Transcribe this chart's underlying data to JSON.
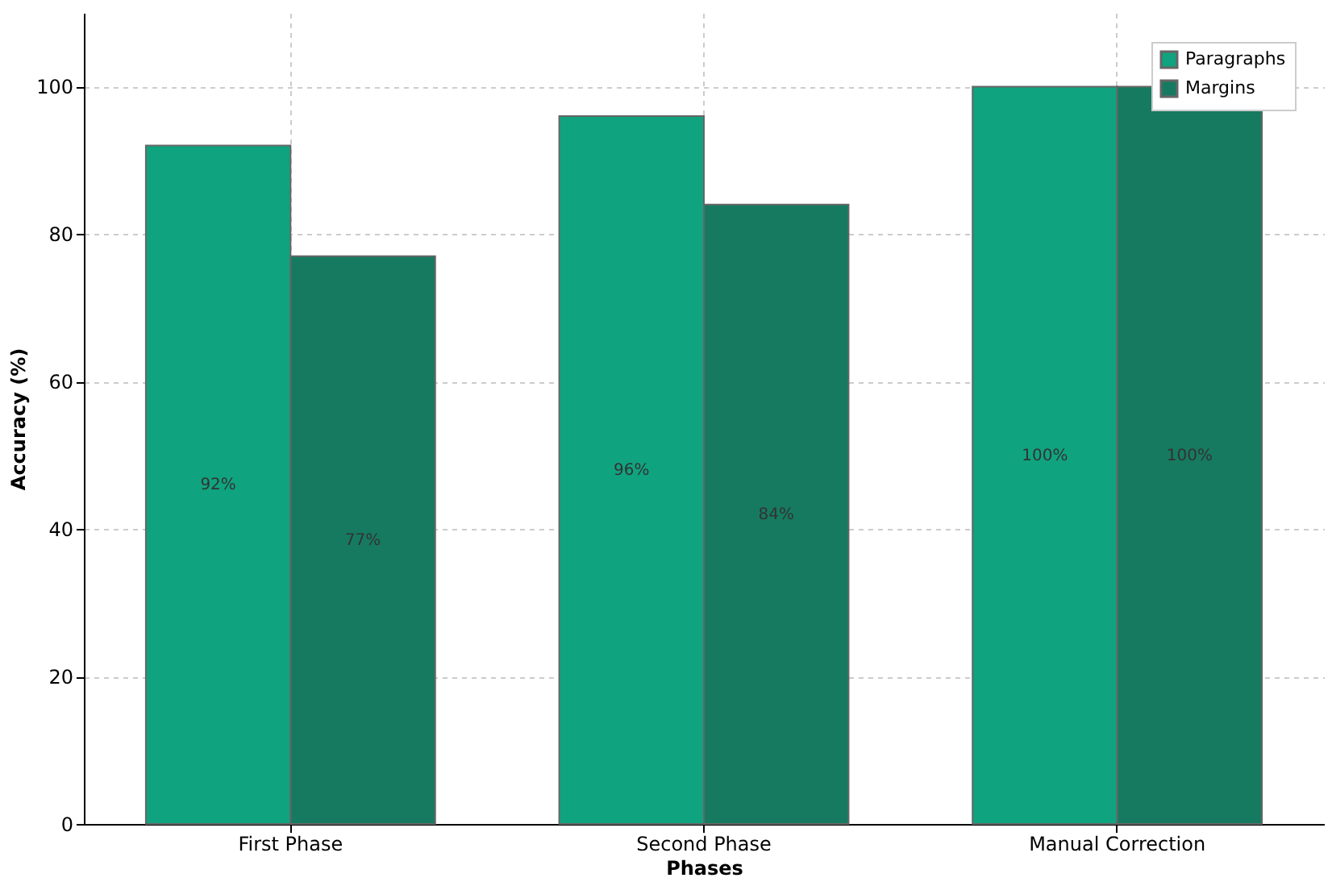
{
  "chart_data": {
    "type": "bar",
    "xlabel": "Phases",
    "ylabel": "Accuracy (%)",
    "categories": [
      "First Phase",
      "Second Phase",
      "Manual Correction"
    ],
    "series": [
      {
        "name": "Paragraphs",
        "color": "#10a37f",
        "values": [
          92,
          96,
          100
        ],
        "value_labels": [
          "92%",
          "96%",
          "100%"
        ]
      },
      {
        "name": "Margins",
        "color": "#167a60",
        "values": [
          77,
          84,
          100
        ],
        "value_labels": [
          "77%",
          "84%",
          "100%"
        ]
      }
    ],
    "ylim": [
      0,
      110
    ],
    "yticks": [
      0,
      20,
      40,
      60,
      80,
      100
    ],
    "grid": true,
    "legend": "top right"
  }
}
